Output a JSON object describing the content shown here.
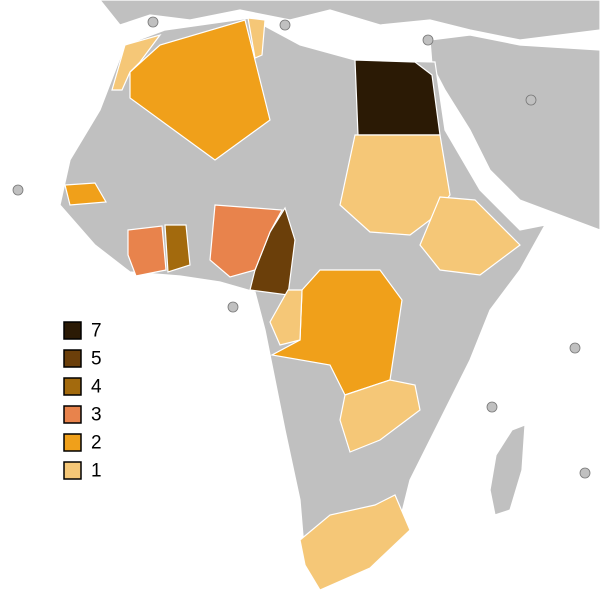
{
  "legend": [
    {
      "value": 7,
      "color": "#2b1a05"
    },
    {
      "value": 5,
      "color": "#6b3f0a"
    },
    {
      "value": 4,
      "color": "#a36a0d"
    },
    {
      "value": 3,
      "color": "#e8834c"
    },
    {
      "value": 2,
      "color": "#f0a01a"
    },
    {
      "value": 1,
      "color": "#f5c777"
    }
  ],
  "shaded_regions": [
    7,
    5,
    4,
    3,
    3,
    2,
    2,
    2,
    1,
    1,
    1,
    1,
    1,
    1,
    1
  ]
}
